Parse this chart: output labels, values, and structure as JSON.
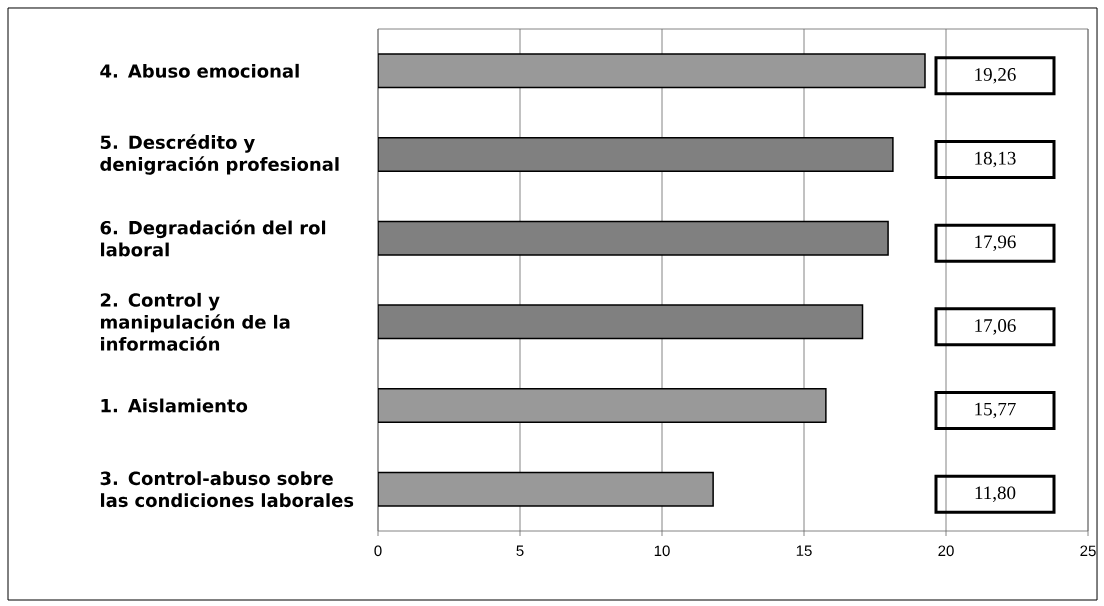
{
  "chart_data": {
    "type": "bar",
    "orientation": "horizontal",
    "categories": [
      "4. Abuso emocional",
      "5. Descrédito y denigración profesional",
      "6. Degradación del rol laboral",
      "2. Control y manipulación de la información",
      "1. Aislamiento",
      "3. Control-abuso sobre las condiciones laborales"
    ],
    "values": [
      19.26,
      18.13,
      17.96,
      17.06,
      15.77,
      11.8
    ],
    "value_labels": [
      "19,26",
      "18,13",
      "17,96",
      "17,06",
      "15,77",
      "11,80"
    ],
    "colors": [
      "#999999",
      "#808080",
      "#808080",
      "#808080",
      "#999999",
      "#999999"
    ],
    "xlim": [
      0,
      25
    ],
    "xticks": [
      0,
      5,
      10,
      15,
      20,
      25
    ],
    "grid": "x"
  }
}
